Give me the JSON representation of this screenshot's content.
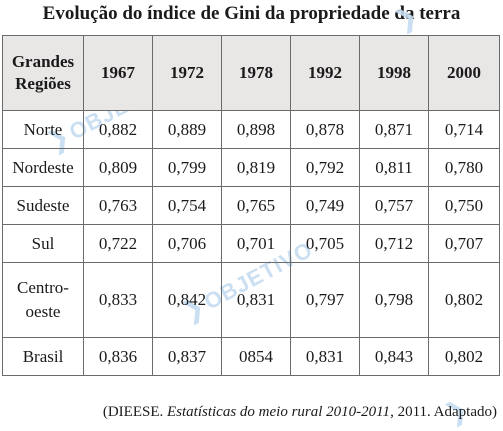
{
  "title": "Evolução do índice de Gini da propriedade da terra",
  "source": {
    "prefix": "(DIEESE. ",
    "italic": "Estatísticas do meio rural 2010-2011",
    "suffix": ", 2011. Adaptado)"
  },
  "watermark": {
    "text": "OBJETIVO"
  },
  "chart_data": {
    "type": "table",
    "title": "Evolução do índice de Gini da propriedade da terra",
    "header_label": "Grandes Regiões",
    "columns": [
      "1967",
      "1972",
      "1978",
      "1992",
      "1998",
      "2000"
    ],
    "rows": [
      {
        "region": "Norte",
        "values": [
          "0,882",
          "0,889",
          "0,898",
          "0,878",
          "0,871",
          "0,714"
        ]
      },
      {
        "region": "Nordeste",
        "values": [
          "0,809",
          "0,799",
          "0,819",
          "0,792",
          "0,811",
          "0,780"
        ]
      },
      {
        "region": "Sudeste",
        "values": [
          "0,763",
          "0,754",
          "0,765",
          "0,749",
          "0,757",
          "0,750"
        ]
      },
      {
        "region": "Sul",
        "values": [
          "0,722",
          "0,706",
          "0,701",
          "0,705",
          "0,712",
          "0,707"
        ]
      },
      {
        "region": "Centro-oeste",
        "values": [
          "0,833",
          "0,842",
          "0,831",
          "0,797",
          "0,798",
          "0,802"
        ]
      },
      {
        "region": "Brasil",
        "values": [
          "0,836",
          "0,837",
          "0854",
          "0,831",
          "0,843",
          "0,802"
        ]
      }
    ]
  }
}
